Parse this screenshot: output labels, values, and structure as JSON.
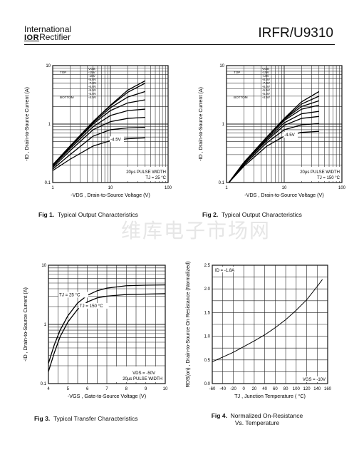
{
  "header": {
    "company_line1": "International",
    "company_logo": "IOR",
    "company_line2": "Rectifier",
    "part_number": "IRFR/U9310"
  },
  "watermark": "维库电子市场网",
  "figures": [
    {
      "number": "Fig 1.",
      "caption": "Typical Output Characteristics",
      "chart_data": {
        "type": "line",
        "xscale": "log",
        "yscale": "log",
        "xlim": [
          1,
          100
        ],
        "ylim": [
          0.1,
          10
        ],
        "x_ticks": [
          "1",
          "10",
          "100"
        ],
        "y_ticks": [
          "0.1",
          "1",
          "10"
        ],
        "xlabel": "-VDS , Drain-to-Source Voltage (V)",
        "ylabel": "-ID , Drain-to-Source Current (A)",
        "note1": "20µs PULSE WIDTH",
        "note2": "TJ = 25 °C",
        "legend_title": "VGS",
        "legend_top": "TOP",
        "legend_bottom": "BOTTOM",
        "legend_entries": [
          "-15V",
          "-10V",
          "-8.0V",
          "-7.0V",
          "-6.0V",
          "-5.5V",
          "-5.0V",
          "-4.5V"
        ],
        "curve_label": "-4.5V",
        "series": [
          {
            "name": "-15V",
            "points": [
              [
                1,
                0.2
              ],
              [
                2,
                0.42
              ],
              [
                5,
                1.1
              ],
              [
                10,
                2.1
              ],
              [
                20,
                3.8
              ],
              [
                40,
                5.5
              ]
            ]
          },
          {
            "name": "-10V",
            "points": [
              [
                1,
                0.2
              ],
              [
                2,
                0.42
              ],
              [
                5,
                1.1
              ],
              [
                10,
                2.05
              ],
              [
                20,
                3.5
              ],
              [
                40,
                5.0
              ]
            ]
          },
          {
            "name": "-8.0V",
            "points": [
              [
                1,
                0.2
              ],
              [
                2,
                0.42
              ],
              [
                5,
                1.05
              ],
              [
                10,
                1.9
              ],
              [
                20,
                2.9
              ],
              [
                40,
                3.6
              ]
            ]
          },
          {
            "name": "-7.0V",
            "points": [
              [
                1,
                0.19
              ],
              [
                2,
                0.4
              ],
              [
                5,
                1.0
              ],
              [
                10,
                1.7
              ],
              [
                20,
                2.3
              ],
              [
                40,
                2.6
              ]
            ]
          },
          {
            "name": "-6.0V",
            "points": [
              [
                1,
                0.19
              ],
              [
                2,
                0.38
              ],
              [
                5,
                0.9
              ],
              [
                10,
                1.4
              ],
              [
                20,
                1.7
              ],
              [
                40,
                1.8
              ]
            ]
          },
          {
            "name": "-5.5V",
            "points": [
              [
                1,
                0.18
              ],
              [
                2,
                0.35
              ],
              [
                5,
                0.8
              ],
              [
                10,
                1.1
              ],
              [
                20,
                1.25
              ],
              [
                40,
                1.3
              ]
            ]
          },
          {
            "name": "-5.0V",
            "points": [
              [
                1,
                0.17
              ],
              [
                2,
                0.3
              ],
              [
                5,
                0.62
              ],
              [
                10,
                0.8
              ],
              [
                20,
                0.86
              ],
              [
                40,
                0.88
              ]
            ]
          },
          {
            "name": "-4.5V",
            "points": [
              [
                1,
                0.16
              ],
              [
                2,
                0.25
              ],
              [
                5,
                0.42
              ],
              [
                10,
                0.52
              ],
              [
                20,
                0.56
              ],
              [
                40,
                0.58
              ]
            ]
          }
        ]
      }
    },
    {
      "number": "Fig 2.",
      "caption": "Typical Output Characteristics",
      "chart_data": {
        "type": "line",
        "xscale": "log",
        "yscale": "log",
        "xlim": [
          1,
          100
        ],
        "ylim": [
          0.1,
          10
        ],
        "x_ticks": [
          "1",
          "10",
          "100"
        ],
        "y_ticks": [
          "0.1",
          "1",
          "10"
        ],
        "xlabel": "-VDS , Drain-to-Source Voltage (V)",
        "ylabel": "-ID , Drain-to-Source Current (A)",
        "note1": "20µs PULSE WIDTH",
        "note2": "TJ = 150 °C",
        "legend_title": "VGS",
        "legend_top": "TOP",
        "legend_bottom": "BOTTOM",
        "legend_entries": [
          "-15V",
          "-10V",
          "-8.0V",
          "-7.0V",
          "-6.0V",
          "-5.5V",
          "-5.0V",
          "-4.5V"
        ],
        "curve_label": "-4.5V",
        "series": [
          {
            "name": "-15V",
            "points": [
              [
                1.1,
                0.1
              ],
              [
                2,
                0.22
              ],
              [
                5,
                0.6
              ],
              [
                10,
                1.25
              ],
              [
                20,
                2.4
              ],
              [
                40,
                3.6
              ]
            ]
          },
          {
            "name": "-10V",
            "points": [
              [
                1.1,
                0.1
              ],
              [
                2,
                0.22
              ],
              [
                5,
                0.6
              ],
              [
                10,
                1.22
              ],
              [
                20,
                2.2
              ],
              [
                40,
                3.0
              ]
            ]
          },
          {
            "name": "-8.0V",
            "points": [
              [
                1.1,
                0.1
              ],
              [
                2,
                0.22
              ],
              [
                5,
                0.6
              ],
              [
                10,
                1.2
              ],
              [
                20,
                2.0
              ],
              [
                40,
                2.5
              ]
            ]
          },
          {
            "name": "-7.0V",
            "points": [
              [
                1.1,
                0.1
              ],
              [
                2,
                0.22
              ],
              [
                5,
                0.58
              ],
              [
                10,
                1.15
              ],
              [
                20,
                1.8
              ],
              [
                40,
                2.1
              ]
            ]
          },
          {
            "name": "-6.0V",
            "points": [
              [
                1.1,
                0.1
              ],
              [
                2,
                0.21
              ],
              [
                5,
                0.55
              ],
              [
                10,
                1.05
              ],
              [
                20,
                1.5
              ],
              [
                40,
                1.65
              ]
            ]
          },
          {
            "name": "-5.5V",
            "points": [
              [
                1.1,
                0.1
              ],
              [
                2,
                0.21
              ],
              [
                5,
                0.52
              ],
              [
                10,
                0.95
              ],
              [
                20,
                1.25
              ],
              [
                40,
                1.35
              ]
            ]
          },
          {
            "name": "-5.0V",
            "points": [
              [
                1.1,
                0.1
              ],
              [
                2,
                0.2
              ],
              [
                5,
                0.48
              ],
              [
                10,
                0.8
              ],
              [
                20,
                0.97
              ],
              [
                40,
                1.02
              ]
            ]
          },
          {
            "name": "-4.5V",
            "points": [
              [
                1.1,
                0.1
              ],
              [
                2,
                0.19
              ],
              [
                5,
                0.42
              ],
              [
                10,
                0.62
              ],
              [
                20,
                0.72
              ],
              [
                40,
                0.75
              ]
            ]
          }
        ]
      }
    },
    {
      "number": "Fig 3.",
      "caption": "Typical Transfer Characteristics",
      "chart_data": {
        "type": "line",
        "xscale": "linear",
        "yscale": "log",
        "xlim": [
          4,
          10
        ],
        "ylim": [
          0.1,
          10
        ],
        "x_ticks": [
          "4",
          "5",
          "6",
          "7",
          "8",
          "9",
          "10"
        ],
        "y_ticks": [
          "0.1",
          "1",
          "10"
        ],
        "xlabel": "-VGS , Gate-to-Source Voltage (V)",
        "ylabel": "-ID , Drain-to-Source Current (A)",
        "note1": "VDS = -50V",
        "note2": "20µs PULSE WIDTH",
        "series": [
          {
            "name": "TJ = 25 °C",
            "points": [
              [
                4,
                0.22
              ],
              [
                4.3,
                0.45
              ],
              [
                4.6,
                0.8
              ],
              [
                5,
                1.4
              ],
              [
                5.5,
                2.3
              ],
              [
                6,
                3.1
              ],
              [
                6.5,
                3.7
              ],
              [
                7,
                4.1
              ],
              [
                8,
                4.5
              ],
              [
                9,
                4.6
              ],
              [
                10,
                4.65
              ]
            ]
          },
          {
            "name": "TJ = 150 °C",
            "points": [
              [
                4,
                0.16
              ],
              [
                4.3,
                0.33
              ],
              [
                4.6,
                0.62
              ],
              [
                5,
                1.1
              ],
              [
                5.5,
                1.8
              ],
              [
                6,
                2.4
              ],
              [
                6.5,
                2.8
              ],
              [
                7,
                3.0
              ],
              [
                8,
                3.2
              ],
              [
                9,
                3.25
              ],
              [
                10,
                3.3
              ]
            ]
          }
        ]
      }
    },
    {
      "number": "Fig 4.",
      "caption": "Normalized On-Resistance",
      "caption2": "Vs. Temperature",
      "chart_data": {
        "type": "line",
        "xscale": "linear",
        "yscale": "linear",
        "xlim": [
          -60,
          160
        ],
        "ylim": [
          0.0,
          2.5
        ],
        "x_ticks": [
          "-60",
          "-40",
          "-20",
          "0",
          "20",
          "40",
          "60",
          "80",
          "100",
          "120",
          "140",
          "160"
        ],
        "y_ticks": [
          "0.0",
          "0.5",
          "1.0",
          "1.5",
          "2.0",
          "2.5"
        ],
        "xlabel": "TJ , Junction Temperature ( °C)",
        "ylabel": "RDS(on) , Drain-to-Source On Resistance (Normalized)",
        "note1": "ID = -1.8A",
        "note2": "VGS = -10V",
        "series": [
          {
            "name": "RDS(on)",
            "points": [
              [
                -60,
                0.46
              ],
              [
                -40,
                0.56
              ],
              [
                -20,
                0.66
              ],
              [
                0,
                0.78
              ],
              [
                20,
                0.9
              ],
              [
                40,
                1.03
              ],
              [
                60,
                1.18
              ],
              [
                80,
                1.35
              ],
              [
                100,
                1.55
              ],
              [
                120,
                1.77
              ],
              [
                140,
                2.05
              ],
              [
                150,
                2.2
              ]
            ]
          }
        ]
      }
    }
  ]
}
